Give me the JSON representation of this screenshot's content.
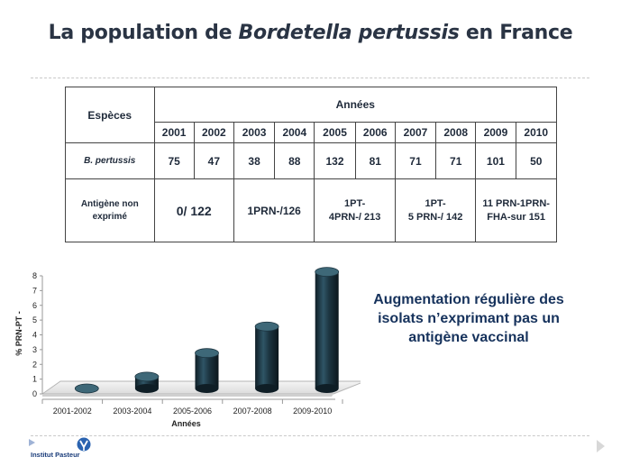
{
  "title": {
    "before": "La population de ",
    "italic": "Bordetella pertussis",
    "after": " en France"
  },
  "table": {
    "especes_header": "Espèces",
    "annees_header": "Années",
    "years": [
      "2001",
      "2002",
      "2003",
      "2004",
      "2005",
      "2006",
      "2007",
      "2008",
      "2009",
      "2010"
    ],
    "species_label": "B. pertussis",
    "counts": [
      "75",
      "47",
      "38",
      "88",
      "132",
      "81",
      "71",
      "71",
      "101",
      "50"
    ],
    "antigen_label_line1": "Antigène non",
    "antigen_label_line2": "exprimé",
    "antigen_groups": [
      {
        "line1": "0/ 122",
        "line2": ""
      },
      {
        "line1": "1PRN-/126",
        "line2": ""
      },
      {
        "line1": "1PT-",
        "line2": "4PRN-/ 213"
      },
      {
        "line1": "1PT-",
        "line2": "5 PRN-/ 142"
      },
      {
        "line1": "11 PRN-1PRN-",
        "line2": "FHA-sur 151"
      }
    ]
  },
  "chart_data": {
    "type": "bar",
    "style": "3d-cylinder",
    "bar_color": "#1c3440",
    "categories": [
      "2001-2002",
      "2003-2004",
      "2005-2006",
      "2007-2008",
      "2009-2010"
    ],
    "values": [
      0,
      0.8,
      2.4,
      4.2,
      7.9
    ],
    "ylabel": "% PRN-PT -",
    "xlabel": "Années",
    "ylim": [
      0,
      8
    ],
    "yticks": [
      "0",
      "1",
      "2",
      "3",
      "4",
      "5",
      "6",
      "7",
      "8"
    ]
  },
  "note": {
    "line1": "Augmentation régulière  des",
    "line2": "isolats n’exprimant pas un",
    "line3": "antigène vaccinal"
  },
  "logo": {
    "text": "Institut Pasteur",
    "color": "#1a3c7a"
  }
}
